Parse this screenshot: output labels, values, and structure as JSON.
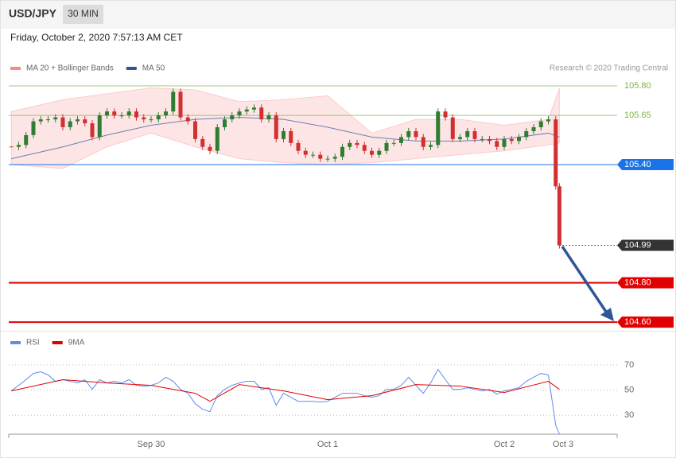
{
  "header": {
    "symbol": "USD/JPY",
    "interval": "30 MIN",
    "timestamp": "Friday, October 2, 2020 7:57:13 AM CET",
    "credit": "Research © 2020 Trading Central"
  },
  "chart_data": [
    {
      "type": "candlestick",
      "x": [
        -19,
        -18,
        -17,
        -16,
        -15,
        -14,
        -13,
        -12,
        -11,
        -10,
        -9,
        -8,
        -7,
        -6,
        -5,
        -4,
        -3,
        -2,
        -1,
        0,
        1,
        2,
        3,
        4,
        5,
        6,
        7,
        8,
        9,
        10,
        11,
        12,
        13,
        14,
        15,
        16,
        17,
        18,
        19,
        20,
        21,
        22,
        23,
        24,
        25,
        26,
        27,
        28,
        29,
        30,
        31,
        32,
        33,
        34,
        35,
        36,
        37,
        38,
        39,
        40,
        41,
        42,
        43,
        44,
        45,
        46,
        47,
        48,
        49,
        50,
        51,
        52,
        53,
        54,
        55,
        55.5
      ],
      "closes": [
        105.49,
        105.5,
        105.55,
        105.62,
        105.63,
        105.63,
        105.64,
        105.59,
        105.62,
        105.63,
        105.61,
        105.54,
        105.65,
        105.67,
        105.65,
        105.65,
        105.67,
        105.64,
        105.63,
        105.63,
        105.65,
        105.67,
        105.77,
        105.64,
        105.62,
        105.53,
        105.49,
        105.47,
        105.59,
        105.63,
        105.65,
        105.67,
        105.68,
        105.69,
        105.63,
        105.65,
        105.53,
        105.57,
        105.51,
        105.47,
        105.45,
        105.45,
        105.43,
        105.43,
        105.44,
        105.49,
        105.51,
        105.5,
        105.47,
        105.45,
        105.47,
        105.51,
        105.51,
        105.54,
        105.57,
        105.54,
        105.49,
        105.5,
        105.67,
        105.64,
        105.53,
        105.54,
        105.57,
        105.53,
        105.53,
        105.52,
        105.49,
        105.53,
        105.52,
        105.54,
        105.57,
        105.59,
        105.62,
        105.63,
        105.29,
        104.99
      ],
      "up_color": "#2e7d32",
      "down_color": "#d32f2f",
      "bands": {
        "name": "MA 20 + Bollinger Bands",
        "color": "#f48a8a",
        "x": [
          -19,
          -12,
          -6,
          0,
          6,
          12,
          18,
          24,
          30,
          36,
          42,
          48,
          54,
          55.5
        ],
        "upper": [
          105.67,
          105.73,
          105.76,
          105.79,
          105.78,
          105.72,
          105.73,
          105.75,
          105.56,
          105.63,
          105.63,
          105.6,
          105.63,
          105.79
        ],
        "lower": [
          105.4,
          105.38,
          105.49,
          105.56,
          105.49,
          105.43,
          105.41,
          105.4,
          105.41,
          105.43,
          105.45,
          105.47,
          105.5,
          105.51
        ]
      },
      "ma": {
        "name": "MA 50",
        "color": "#2f5597",
        "x": [
          -19,
          -12,
          -6,
          0,
          6,
          12,
          18,
          24,
          30,
          36,
          42,
          48,
          54,
          55.5
        ],
        "values": [
          105.43,
          105.49,
          105.55,
          105.6,
          105.63,
          105.64,
          105.63,
          105.59,
          105.54,
          105.52,
          105.52,
          105.53,
          105.56,
          105.54
        ]
      },
      "xlim": [
        -19.35,
        63.35
      ],
      "ylim": [
        104.556,
        105.994
      ],
      "yticks": [
        {
          "value": 105.8,
          "label": "105.80"
        },
        {
          "value": 105.65,
          "label": "105.65"
        },
        {
          "value": 105.4,
          "label": "105.40"
        },
        {
          "value": 104.99,
          "label": "104.99"
        },
        {
          "value": 104.8,
          "label": "104.80"
        },
        {
          "value": 104.6,
          "label": "104.60"
        }
      ],
      "ytick_colors": [
        "#7cb342",
        "#7cb342",
        "#1a73e8",
        "#333333",
        "#e00000",
        "#e00000"
      ],
      "ytick_styles": [
        "text",
        "text",
        "box",
        "box-dotted",
        "box-bold",
        "box-bold"
      ]
    },
    {
      "type": "line",
      "series": [
        {
          "name": "RSI",
          "color": "#5b8def",
          "x": [
            -19,
            -18,
            -17,
            -16,
            -15,
            -14,
            -13,
            -12,
            -11,
            -10,
            -9,
            -8,
            -7,
            -6,
            -5,
            -4,
            -3,
            -2,
            -1,
            0,
            1,
            2,
            3,
            4,
            5,
            6,
            7,
            8,
            9,
            10,
            11,
            12,
            13,
            14,
            15,
            16,
            17,
            18,
            19,
            20,
            21,
            22,
            23,
            24,
            25,
            26,
            27,
            28,
            29,
            30,
            31,
            32,
            33,
            34,
            35,
            36,
            37,
            38,
            39,
            40,
            41,
            42,
            43,
            44,
            45,
            46,
            47,
            48,
            49,
            50,
            51,
            52,
            53,
            54,
            55,
            55.5
          ],
          "values": [
            49.4,
            53.8,
            58.3,
            63.3,
            64.6,
            62.1,
            57.0,
            58.3,
            57.0,
            55.7,
            58.3,
            50.6,
            58.3,
            55.7,
            57.0,
            55.7,
            58.3,
            53.8,
            53.2,
            53.8,
            55.7,
            60.2,
            57.0,
            50.6,
            47.5,
            39.2,
            34.8,
            32.9,
            45.6,
            50.6,
            53.8,
            55.7,
            57.0,
            57.0,
            50.6,
            51.9,
            37.9,
            47.5,
            44.3,
            41.1,
            41.1,
            41.1,
            40.5,
            41.1,
            44.3,
            47.5,
            47.5,
            47.5,
            45.6,
            44.3,
            45.6,
            50.6,
            50.6,
            53.8,
            60.2,
            53.8,
            47.5,
            55.7,
            66.5,
            58.3,
            50.6,
            50.6,
            51.9,
            50.6,
            49.4,
            50.6,
            46.8,
            49.4,
            50.6,
            51.9,
            57.0,
            60.2,
            63.3,
            62.1,
            22.1,
            15.1
          ]
        },
        {
          "name": "9MA",
          "color": "#e00000",
          "x": [
            -19,
            -12,
            -6,
            0,
            6,
            8,
            12,
            18,
            24,
            30,
            36,
            42,
            48,
            54,
            55.5
          ],
          "values": [
            49.4,
            58.3,
            55.7,
            53.8,
            47.5,
            41.1,
            54.4,
            49.4,
            42.4,
            45.6,
            54.4,
            53.2,
            48.1,
            57.0,
            50.6
          ]
        }
      ],
      "xlim": [
        -19.35,
        63.35
      ],
      "ylim": [
        15,
        82
      ],
      "yticks": [
        30,
        50,
        70
      ],
      "xticks": [
        {
          "value": 0,
          "label": "Sep 30"
        },
        {
          "value": 24,
          "label": "Oct 1"
        },
        {
          "value": 48,
          "label": "Oct 2"
        },
        {
          "value": 56,
          "label": "Oct 3"
        }
      ]
    }
  ]
}
